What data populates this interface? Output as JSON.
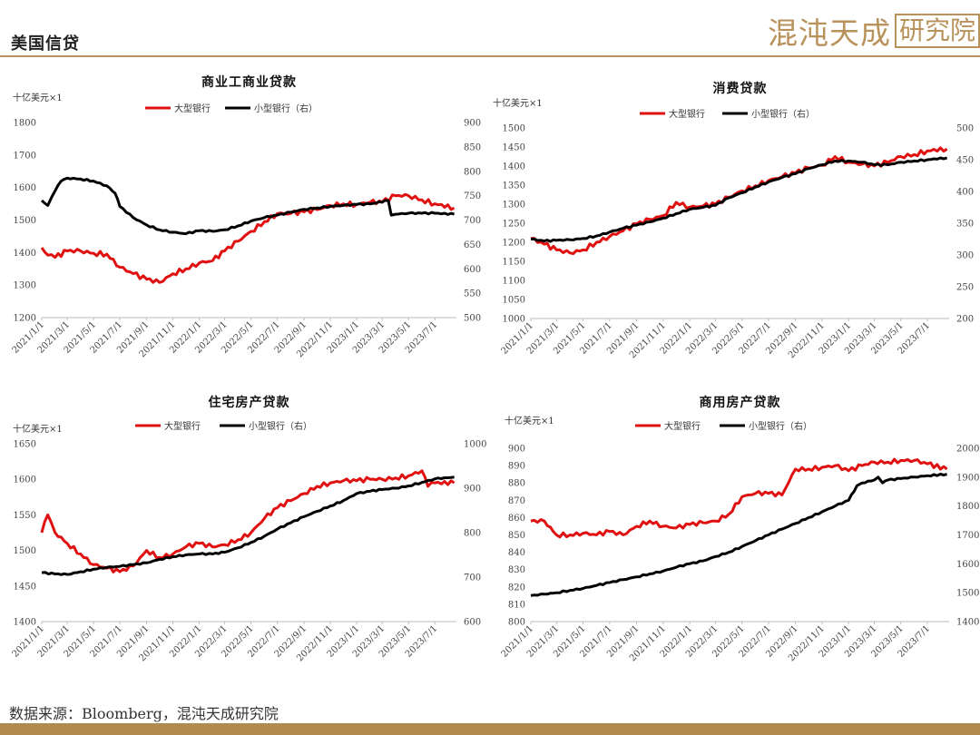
{
  "page_title": "美国信贷",
  "logo": {
    "text_main": "混沌天成",
    "text_box": "研究院"
  },
  "source_note": "数据来源：Bloomberg，混沌天成研究院",
  "colors": {
    "large_banks": "#e01010",
    "small_banks": "#000000",
    "accent": "#b8925a",
    "footer": "#b08a4f"
  },
  "x_tick_labels": [
    "2021/1/1",
    "2021/3/1",
    "2021/5/1",
    "2021/7/1",
    "2021/9/1",
    "2021/11/1",
    "2022/1/1",
    "2022/3/1",
    "2022/5/1",
    "2022/7/1",
    "2022/9/1",
    "2022/11/1",
    "2023/1/1",
    "2023/3/1",
    "2023/5/1",
    "2023/7/1"
  ],
  "chart_data": [
    {
      "type": "line",
      "title": "商业工商业贷款",
      "unit_label": "十亿美元×1",
      "legend": [
        "大型银行",
        "小型银行（右）"
      ],
      "legend_position": "top",
      "grid": false,
      "x_range": [
        "2021/1/1",
        "2023/8/20"
      ],
      "y_left": {
        "min": 1200,
        "max": 1800,
        "step": 100
      },
      "y_right": {
        "min": 500,
        "max": 900,
        "step": 50
      },
      "series": [
        {
          "name": "大型银行",
          "axis": "left",
          "x": [
            "2021/1/1",
            "2021/1/15",
            "2021/2/1",
            "2021/3/1",
            "2021/4/1",
            "2021/5/1",
            "2021/6/1",
            "2021/7/1",
            "2021/8/1",
            "2021/9/1",
            "2021/10/1",
            "2021/11/1",
            "2021/12/1",
            "2022/1/1",
            "2022/2/1",
            "2022/3/1",
            "2022/4/1",
            "2022/5/1",
            "2022/6/1",
            "2022/7/1",
            "2022/8/1",
            "2022/9/1",
            "2022/10/1",
            "2022/11/1",
            "2022/12/1",
            "2023/1/1",
            "2023/2/1",
            "2023/3/1",
            "2023/4/1",
            "2023/5/1",
            "2023/6/1",
            "2023/7/1",
            "2023/8/15"
          ],
          "y": [
            1415,
            1392,
            1385,
            1405,
            1405,
            1398,
            1395,
            1355,
            1335,
            1318,
            1308,
            1335,
            1350,
            1368,
            1375,
            1405,
            1435,
            1465,
            1495,
            1520,
            1520,
            1525,
            1532,
            1545,
            1550,
            1548,
            1555,
            1555,
            1575,
            1575,
            1562,
            1550,
            1537
          ]
        },
        {
          "name": "小型银行（右）",
          "axis": "right",
          "x": [
            "2021/1/1",
            "2021/1/15",
            "2021/2/1",
            "2021/2/15",
            "2021/3/1",
            "2021/4/1",
            "2021/5/1",
            "2021/6/1",
            "2021/6/20",
            "2021/7/1",
            "2021/8/1",
            "2021/9/1",
            "2021/10/1",
            "2021/11/1",
            "2021/12/1",
            "2022/1/1",
            "2022/2/1",
            "2022/3/1",
            "2022/4/1",
            "2022/5/1",
            "2022/6/1",
            "2022/7/1",
            "2022/8/1",
            "2022/9/1",
            "2022/10/1",
            "2022/11/1",
            "2022/12/1",
            "2023/1/1",
            "2023/2/1",
            "2023/3/15",
            "2023/3/22",
            "2023/4/1",
            "2023/5/1",
            "2023/6/1",
            "2023/7/1",
            "2023/8/15"
          ],
          "y": [
            740,
            730,
            760,
            780,
            786,
            784,
            780,
            770,
            755,
            728,
            705,
            690,
            680,
            675,
            672,
            678,
            677,
            680,
            688,
            698,
            705,
            710,
            716,
            722,
            725,
            728,
            730,
            732,
            733,
            740,
            710,
            712,
            714,
            714,
            714,
            712
          ]
        }
      ]
    },
    {
      "type": "line",
      "title": "消费贷款",
      "unit_label": "十亿美元×1",
      "legend": [
        "大型银行",
        "小型银行（右）"
      ],
      "legend_position": "top",
      "grid": false,
      "x_range": [
        "2021/1/1",
        "2023/8/20"
      ],
      "y_left": {
        "min": 1000,
        "max": 1500,
        "step": 50
      },
      "y_right": {
        "min": 200,
        "max": 500,
        "step": 50
      },
      "series": [
        {
          "name": "大型银行",
          "axis": "left",
          "x": [
            "2021/1/1",
            "2021/2/1",
            "2021/3/1",
            "2021/4/1",
            "2021/5/1",
            "2021/6/1",
            "2021/7/1",
            "2021/8/1",
            "2021/9/1",
            "2021/10/1",
            "2021/11/1",
            "2021/12/1",
            "2022/1/1",
            "2022/2/1",
            "2022/3/1",
            "2022/4/1",
            "2022/5/1",
            "2022/6/1",
            "2022/7/1",
            "2022/8/1",
            "2022/9/1",
            "2022/10/1",
            "2022/11/1",
            "2022/12/1",
            "2023/1/1",
            "2023/2/1",
            "2023/3/1",
            "2023/4/1",
            "2023/5/1",
            "2023/6/1",
            "2023/7/1",
            "2023/8/15"
          ],
          "y": [
            1210,
            1195,
            1180,
            1172,
            1180,
            1200,
            1215,
            1230,
            1248,
            1260,
            1270,
            1305,
            1292,
            1295,
            1300,
            1318,
            1335,
            1348,
            1362,
            1372,
            1382,
            1395,
            1402,
            1425,
            1410,
            1405,
            1400,
            1410,
            1425,
            1430,
            1440,
            1445
          ]
        },
        {
          "name": "小型银行（右）",
          "axis": "right",
          "x": [
            "2021/1/1",
            "2021/2/1",
            "2021/3/1",
            "2021/4/1",
            "2021/5/1",
            "2021/6/1",
            "2021/7/1",
            "2021/8/1",
            "2021/9/1",
            "2021/10/1",
            "2021/11/1",
            "2021/12/1",
            "2022/1/1",
            "2022/2/1",
            "2022/3/1",
            "2022/4/1",
            "2022/5/1",
            "2022/6/1",
            "2022/7/1",
            "2022/8/1",
            "2022/9/1",
            "2022/10/1",
            "2022/11/1",
            "2022/12/1",
            "2023/1/1",
            "2023/2/1",
            "2023/3/1",
            "2023/4/1",
            "2023/5/1",
            "2023/6/1",
            "2023/7/1",
            "2023/8/15"
          ],
          "y": [
            325,
            322,
            323,
            324,
            326,
            330,
            336,
            342,
            347,
            352,
            358,
            365,
            372,
            375,
            378,
            390,
            398,
            407,
            415,
            422,
            428,
            436,
            442,
            448,
            448,
            446,
            442,
            442,
            446,
            448,
            450,
            453
          ]
        }
      ]
    },
    {
      "type": "line",
      "title": "住宅房产贷款",
      "unit_label": "十亿美元×1",
      "legend": [
        "大型银行",
        "小型银行（右）"
      ],
      "legend_position": "top",
      "grid": false,
      "x_range": [
        "2021/1/1",
        "2023/8/20"
      ],
      "y_left": {
        "min": 1400,
        "max": 1650,
        "step": 50
      },
      "y_right": {
        "min": 600,
        "max": 1000,
        "step": 100
      },
      "series": [
        {
          "name": "大型银行",
          "axis": "left",
          "x": [
            "2021/1/1",
            "2021/1/15",
            "2021/2/1",
            "2021/3/1",
            "2021/4/1",
            "2021/5/1",
            "2021/6/1",
            "2021/7/1",
            "2021/8/1",
            "2021/9/1",
            "2021/10/1",
            "2021/11/1",
            "2021/12/1",
            "2022/1/1",
            "2022/2/1",
            "2022/3/1",
            "2022/4/1",
            "2022/5/1",
            "2022/6/1",
            "2022/7/1",
            "2022/8/1",
            "2022/9/1",
            "2022/10/1",
            "2022/11/1",
            "2022/12/1",
            "2023/1/1",
            "2023/2/1",
            "2023/3/1",
            "2023/4/1",
            "2023/5/1",
            "2023/6/1",
            "2023/6/15",
            "2023/7/1",
            "2023/8/15"
          ],
          "y": [
            1525,
            1550,
            1525,
            1510,
            1495,
            1480,
            1475,
            1470,
            1478,
            1500,
            1490,
            1495,
            1505,
            1510,
            1505,
            1508,
            1515,
            1525,
            1545,
            1560,
            1570,
            1580,
            1590,
            1595,
            1598,
            1598,
            1600,
            1600,
            1602,
            1605,
            1612,
            1590,
            1595,
            1595
          ]
        },
        {
          "name": "小型银行（右）",
          "axis": "right",
          "x": [
            "2021/1/1",
            "2021/2/1",
            "2021/3/1",
            "2021/4/1",
            "2021/5/1",
            "2021/6/1",
            "2021/7/1",
            "2021/8/1",
            "2021/9/1",
            "2021/10/1",
            "2021/11/1",
            "2021/12/1",
            "2022/1/1",
            "2022/2/1",
            "2022/3/1",
            "2022/4/1",
            "2022/5/1",
            "2022/6/1",
            "2022/7/1",
            "2022/8/1",
            "2022/9/1",
            "2022/10/1",
            "2022/11/1",
            "2022/12/1",
            "2023/1/1",
            "2023/2/1",
            "2023/3/1",
            "2023/4/1",
            "2023/5/1",
            "2023/6/1",
            "2023/7/1",
            "2023/8/15"
          ],
          "y": [
            710,
            707,
            706,
            712,
            718,
            722,
            724,
            728,
            732,
            740,
            746,
            750,
            752,
            752,
            756,
            766,
            778,
            792,
            808,
            822,
            836,
            848,
            860,
            872,
            888,
            893,
            897,
            900,
            905,
            913,
            921,
            925
          ]
        }
      ]
    },
    {
      "type": "line",
      "title": "商用房产贷款",
      "unit_label": "十亿美元×1",
      "legend": [
        "大型银行",
        "小型银行（右）"
      ],
      "legend_position": "top",
      "grid": false,
      "x_range": [
        "2021/1/1",
        "2023/8/20"
      ],
      "y_left": {
        "min": 800,
        "max": 900,
        "step": 10
      },
      "y_right": {
        "min": 1400,
        "max": 2000,
        "step": 100
      },
      "series": [
        {
          "name": "大型银行",
          "axis": "left",
          "x": [
            "2021/1/1",
            "2021/2/1",
            "2021/3/1",
            "2021/4/1",
            "2021/5/1",
            "2021/6/1",
            "2021/7/1",
            "2021/8/1",
            "2021/9/1",
            "2021/10/1",
            "2021/11/1",
            "2021/12/1",
            "2022/1/1",
            "2022/2/1",
            "2022/3/1",
            "2022/4/1",
            "2022/5/1",
            "2022/6/1",
            "2022/7/1",
            "2022/8/1",
            "2022/9/1",
            "2022/10/1",
            "2022/11/1",
            "2022/12/1",
            "2023/1/1",
            "2023/2/1",
            "2023/3/1",
            "2023/4/1",
            "2023/5/1",
            "2023/6/1",
            "2023/7/1",
            "2023/8/15"
          ],
          "y": [
            858,
            858,
            850,
            850,
            851,
            850,
            852,
            850,
            855,
            858,
            855,
            854,
            856,
            857,
            858,
            862,
            872,
            874,
            874,
            873,
            888,
            888,
            889,
            890,
            887,
            890,
            892,
            892,
            893,
            893,
            891,
            888
          ]
        },
        {
          "name": "小型银行（右）",
          "axis": "right",
          "x": [
            "2021/1/1",
            "2021/2/1",
            "2021/3/1",
            "2021/4/1",
            "2021/5/1",
            "2021/6/1",
            "2021/7/1",
            "2021/8/1",
            "2021/9/1",
            "2021/10/1",
            "2021/11/1",
            "2021/12/1",
            "2022/1/1",
            "2022/2/1",
            "2022/3/1",
            "2022/4/1",
            "2022/5/1",
            "2022/6/1",
            "2022/7/1",
            "2022/8/1",
            "2022/9/1",
            "2022/10/1",
            "2022/11/1",
            "2022/12/1",
            "2023/1/1",
            "2023/1/20",
            "2023/2/1",
            "2023/3/1",
            "2023/3/10",
            "2023/3/20",
            "2023/4/1",
            "2023/5/1",
            "2023/6/1",
            "2023/7/1",
            "2023/8/15"
          ],
          "y": [
            1490,
            1495,
            1500,
            1508,
            1515,
            1525,
            1535,
            1545,
            1555,
            1565,
            1575,
            1588,
            1600,
            1610,
            1625,
            1640,
            1660,
            1680,
            1700,
            1720,
            1740,
            1760,
            1780,
            1800,
            1820,
            1870,
            1880,
            1890,
            1900,
            1880,
            1890,
            1895,
            1900,
            1905,
            1910
          ]
        }
      ]
    }
  ]
}
